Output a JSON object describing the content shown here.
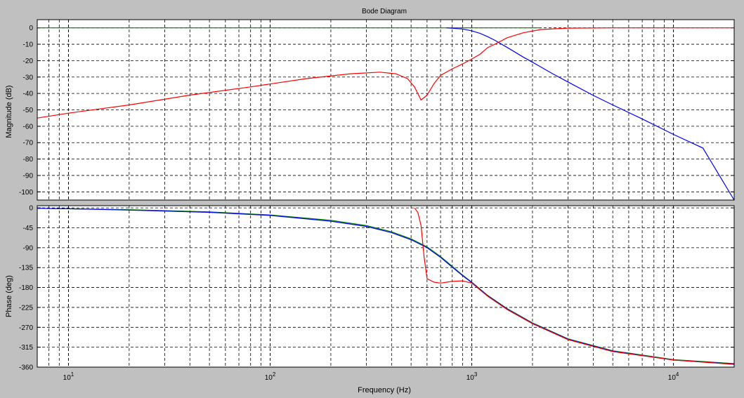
{
  "chart_data": {
    "type": "line",
    "title": "Bode Diagram",
    "xlabel": "Frequency  (Hz)",
    "xscale": "log",
    "xlim": [
      7,
      20000
    ],
    "x_tick_labels": [
      {
        "value": 10,
        "base": "10",
        "exp": "1"
      },
      {
        "value": 100,
        "base": "10",
        "exp": "2"
      },
      {
        "value": 1000,
        "base": "10",
        "exp": "3"
      },
      {
        "value": 10000,
        "base": "10",
        "exp": "4"
      }
    ],
    "grid": true,
    "colors": {
      "green": "#008000",
      "blue": "#0000ff",
      "red": "#ff0000"
    },
    "panels": [
      {
        "name": "magnitude",
        "ylabel": "Magnitude (dB)",
        "ylim": [
          -105,
          5
        ],
        "yticks": [
          0,
          -10,
          -20,
          -30,
          -40,
          -50,
          -60,
          -70,
          -80,
          -90,
          -100
        ],
        "series": [
          {
            "color": "#008000",
            "x": [
              7,
              2200
            ],
            "y": [
              0,
              0
            ]
          },
          {
            "color": "#0000ff",
            "x": [
              750,
              900,
              1000,
              1100,
              1200,
              1300,
              1500,
              1800,
              2000,
              2500,
              3000,
              4000,
              5000,
              7000,
              10000,
              14000,
              20000
            ],
            "y": [
              0,
              -0.7,
              -1.8,
              -3.4,
              -5.4,
              -7.6,
              -12,
              -17.8,
              -21,
              -27.8,
              -33,
              -41.2,
              -47,
              -55.5,
              -65,
              -73.3,
              -105
            ]
          },
          {
            "color": "#ff0000",
            "x": [
              7,
              10,
              20,
              40,
              80,
              150,
              250,
              350,
              420,
              480,
              520,
              560,
              600,
              650,
              700,
              800,
              900,
              1000,
              1100,
              1200,
              1300,
              1500,
              1800,
              2200,
              3000,
              5000,
              10000,
              20000
            ],
            "y": [
              -55,
              -52,
              -47,
              -41,
              -36,
              -31,
              -28,
              -27,
              -28,
              -31,
              -36,
              -44,
              -41,
              -34,
              -29,
              -25,
              -22,
              -19,
              -16,
              -12,
              -10,
              -6,
              -3,
              -1,
              -0.2,
              0,
              0,
              0
            ]
          }
        ]
      },
      {
        "name": "phase",
        "ylabel": "Phase (deg)",
        "ylim": [
          -360,
          5
        ],
        "yticks": [
          0,
          -45,
          -90,
          -135,
          -180,
          -225,
          -270,
          -315,
          -360
        ],
        "series": [
          {
            "color": "#008000",
            "x": [
              7,
              10,
              20,
              50,
              100,
              200,
              300,
              400,
              500,
              600,
              700,
              800,
              900,
              1000,
              1200,
              1500,
              2000,
              3000,
              5000,
              10000,
              20000
            ],
            "y": [
              -1,
              -2,
              -4,
              -9,
              -16,
              -28,
              -40,
              -54,
              -70,
              -88,
              -110,
              -132,
              -152,
              -168,
              -198,
              -228,
              -260,
              -296,
              -323,
              -343,
              -352
            ]
          },
          {
            "color": "#0000ff",
            "x": [
              7,
              10,
              20,
              50,
              100,
              200,
              300,
              400,
              500,
              600,
              700,
              800,
              900,
              1000,
              1200,
              1500,
              2000,
              3000,
              5000,
              10000,
              20000
            ],
            "y": [
              -1,
              -2,
              -5,
              -10,
              -17,
              -30,
              -42,
              -56,
              -72,
              -90,
              -112,
              -134,
              -153,
              -169,
              -199,
              -229,
              -261,
              -297,
              -324,
              -344,
              -353
            ]
          },
          {
            "color": "#ff0000",
            "x": [
              520,
              540,
              560,
              580,
              600,
              650,
              700,
              800,
              900,
              1000,
              1200,
              1500,
              2000,
              3000,
              5000,
              10000,
              20000
            ],
            "y": [
              0,
              -10,
              -40,
              -110,
              -160,
              -168,
              -170,
              -166,
              -165,
              -170,
              -200,
              -230,
              -262,
              -298,
              -325,
              -344,
              -354
            ]
          }
        ]
      }
    ]
  }
}
